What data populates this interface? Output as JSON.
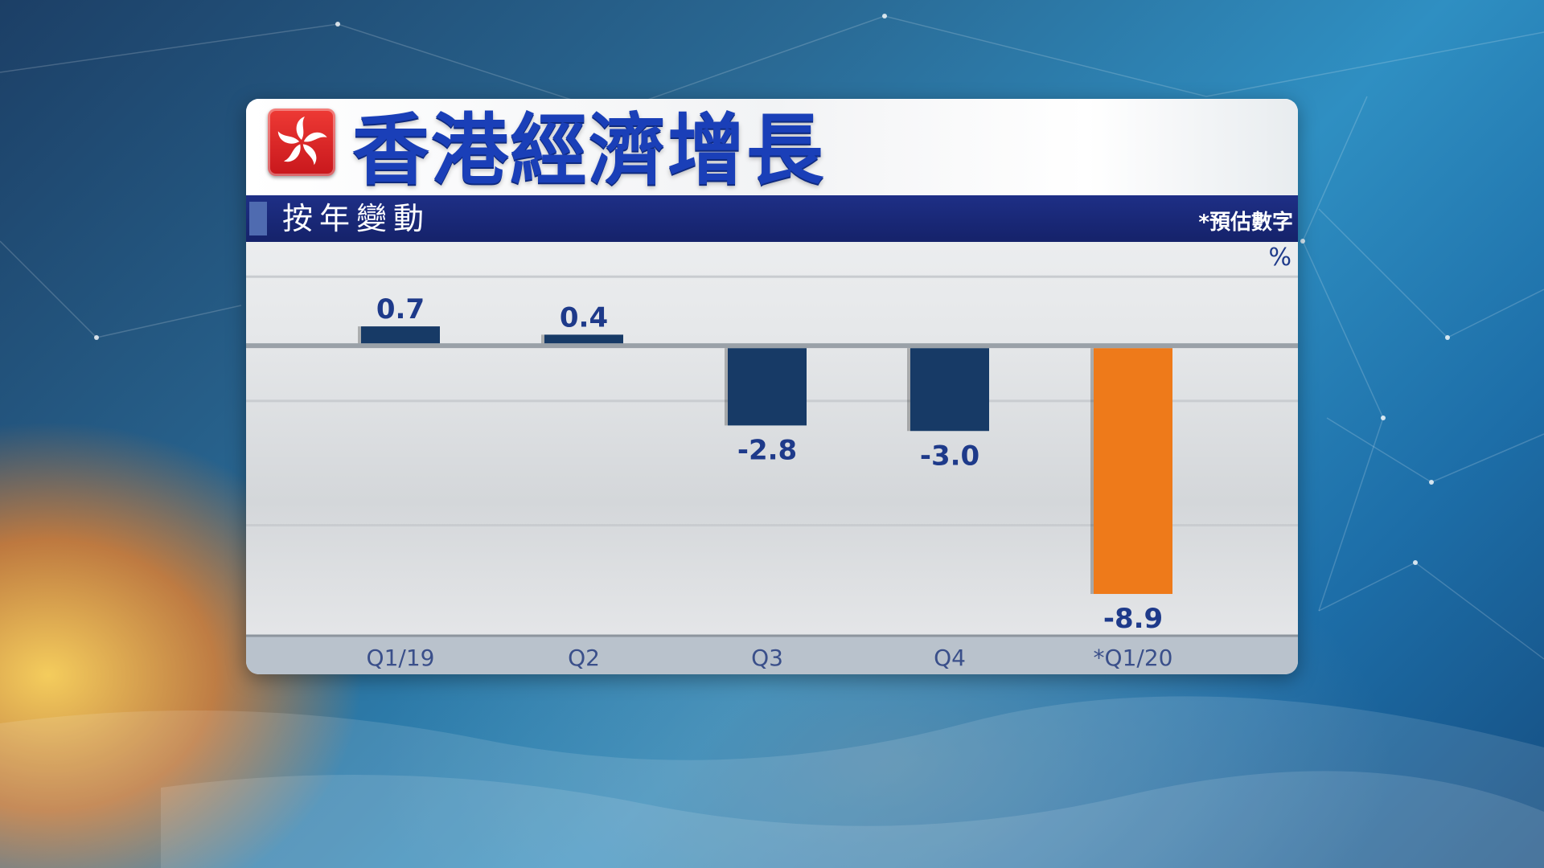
{
  "header": {
    "title": "香港經濟增長",
    "subtitle": "按年變動",
    "note": "*預估數字",
    "unit": "%"
  },
  "colors": {
    "bar_default": "#173a66",
    "bar_highlight": "#ee7a1a",
    "label": "#1e3a8a",
    "title": "#1a3fb8"
  },
  "chart_data": {
    "type": "bar",
    "categories": [
      "Q1/19",
      "Q2",
      "Q3",
      "Q4",
      "*Q1/20"
    ],
    "values": [
      0.7,
      0.4,
      -2.8,
      -3.0,
      -8.9
    ],
    "value_labels": [
      "0.7",
      "0.4",
      "-2.8",
      "-3.0",
      "-8.9"
    ],
    "highlight_index": 4,
    "ylim": [
      -10.5,
      3.7
    ],
    "grid": true,
    "legend": "none",
    "ylabel": "%"
  }
}
